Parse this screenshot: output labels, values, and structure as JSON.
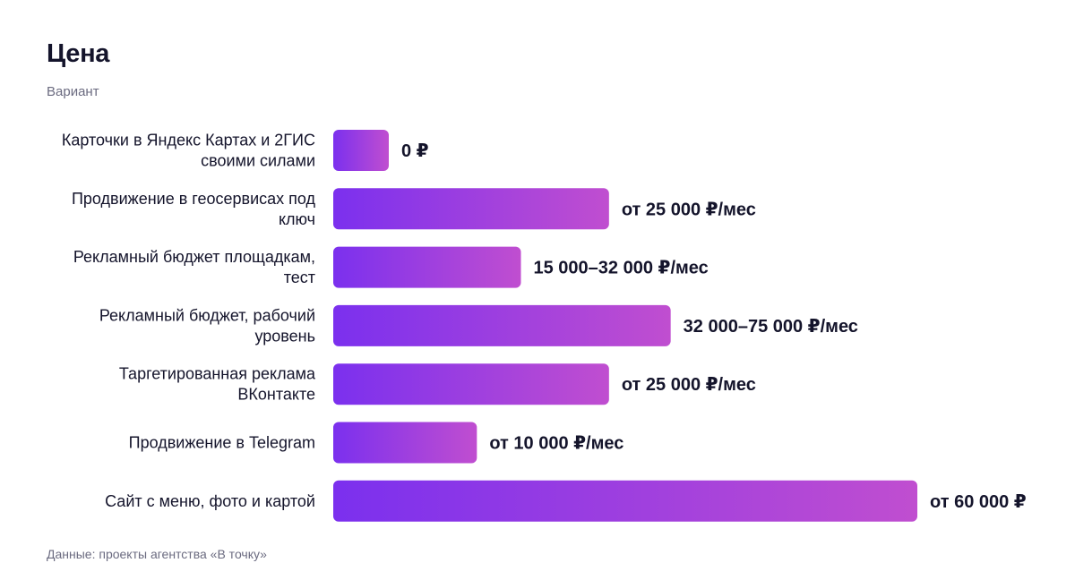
{
  "header": {
    "title": "Цена",
    "subtitle": "Вариант"
  },
  "footer": {
    "source": "Данные: проекты агентства «В точку»"
  },
  "colors": {
    "bar_start": "#7b30ee",
    "bar_end": "#c04ed0",
    "text": "#14142b",
    "muted": "#6b6b80"
  },
  "chart_data": {
    "type": "bar",
    "orientation": "horizontal",
    "title": "Цена",
    "subtitle": "Вариант",
    "xlabel": "",
    "ylabel": "",
    "grid": false,
    "legend": "none",
    "xlim": [
      0,
      60000
    ],
    "categories": [
      [
        "Карточки в Яндекс Картах и 2ГИС",
        "своими силами"
      ],
      [
        "Продвижение в геосервисах под",
        "ключ"
      ],
      [
        "Рекламный бюджет площадкам,",
        "тест"
      ],
      [
        "Рекламный бюджет, рабочий",
        "уровень"
      ],
      [
        "Таргетированная реклама",
        "ВКонтакте"
      ],
      [
        "Продвижение в Telegram"
      ],
      [
        "Сайт с меню, фото и картой"
      ]
    ],
    "values": [
      0,
      25000,
      15000,
      32000,
      25000,
      10000,
      60000
    ],
    "value_labels": [
      "0 ₽",
      "от 25 000 ₽/мес",
      "15 000–32 000 ₽/мес",
      "32 000–75 000 ₽/мес",
      "от 25 000 ₽/мес",
      "от 10 000 ₽/мес",
      "от 60 000 ₽"
    ]
  }
}
